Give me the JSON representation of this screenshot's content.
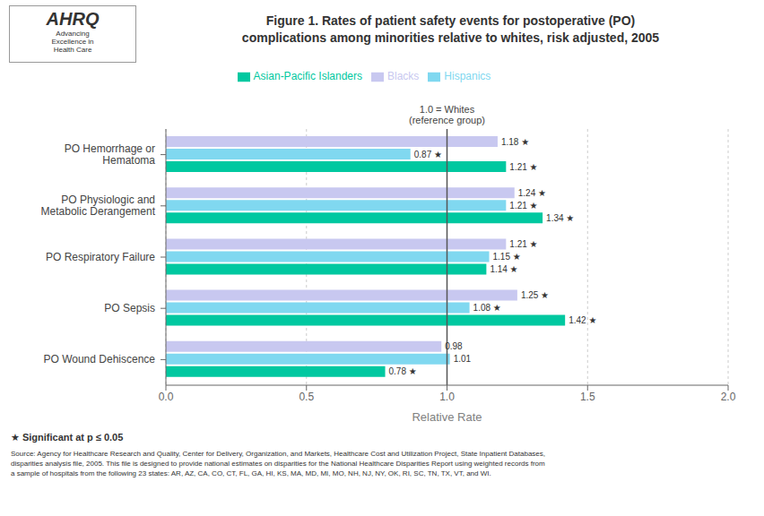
{
  "chart_data": {
    "type": "bar",
    "orientation": "horizontal",
    "title": "Figure 1. Rates of patient safety events for postoperative (PO)\ncomplications among minorities relative to whites, risk adjusted, 2005",
    "categories": [
      "PO Hemorrhage or\nHematoma",
      "PO Physiologic and\nMetabolic Derangement",
      "PO Respiratory Failure",
      "PO Sepsis",
      "PO Wound Dehiscence"
    ],
    "series": [
      {
        "name": "Blacks",
        "color": "#c8c8f0",
        "values": [
          1.18,
          1.24,
          1.21,
          1.25,
          0.98
        ],
        "value_labels": [
          "1.18 ★",
          "1.24 ★",
          "1.21 ★",
          "1.25 ★",
          "0.98"
        ]
      },
      {
        "name": "Hispanics",
        "color": "#80d8f0",
        "values": [
          0.87,
          1.21,
          1.15,
          1.08,
          1.01
        ],
        "value_labels": [
          "0.87 ★",
          "1.21 ★",
          "1.15 ★",
          "1.08 ★",
          "1.01"
        ]
      },
      {
        "name": "Asian-Pacific Islanders",
        "color": "#00c8a0",
        "values": [
          1.21,
          1.34,
          1.14,
          1.42,
          0.78
        ],
        "value_labels": [
          "1.21 ★",
          "1.34 ★",
          "1.14 ★",
          "1.42 ★",
          "0.78 ★"
        ]
      }
    ],
    "data_labels": true,
    "xlabel": "Relative Rate",
    "xlim": [
      0.0,
      2.0
    ],
    "xticks": [
      {
        "value": 0.0,
        "label": "0.0"
      },
      {
        "value": 0.5,
        "label": "0.5"
      },
      {
        "value": 1.0,
        "label": "1.0"
      },
      {
        "value": 1.5,
        "label": "1.5"
      },
      {
        "value": 2.0,
        "label": "2.0"
      }
    ],
    "grid": true,
    "legend": "top",
    "annotations": [
      {
        "text": "1.0 = Whites\n(reference group)",
        "x": 1.0
      },
      {
        "text": "AHRQ"
      },
      {
        "text": "Advancing\nExcellence in\nHealth Care"
      },
      {
        "text": "★ Significant at p ≤ 0.05"
      },
      {
        "text": "Source: Agency for Healthcare Research and Quality, Center for Delivery, Organization, and Markets, Healthcare Cost and Utilization Project, State Inpatient Databases,\ndisparities analysis file, 2005. This file is designed to provide national estimates on disparities for the National Healthcare Disparities Report using weighted records from\na sample of hospitals from the following 23 states: AR, AZ, CA, CO, CT, FL, GA, HI, KS, MA, MD, MI, MO, NH, NJ, NY, OK, RI, SC, TN, TX, VT, and WI."
      }
    ]
  }
}
